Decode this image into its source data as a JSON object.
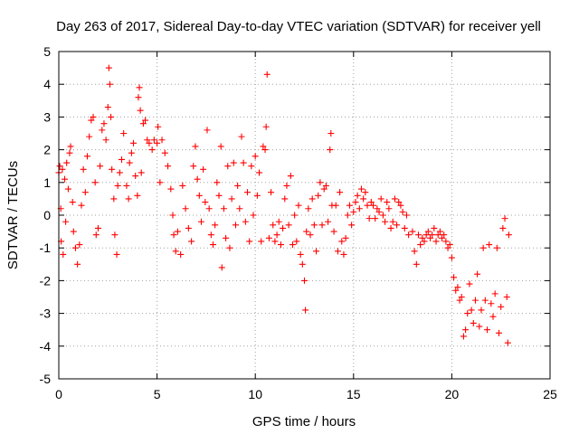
{
  "chart_data": {
    "type": "scatter",
    "title": "Day 263 of 2017, Sidereal Day-to-day VTEC variation (SDTVAR) for receiver yell",
    "xlabel": "GPS time / hours",
    "ylabel": "SDTVAR / TECUs",
    "xlim": [
      0,
      25
    ],
    "ylim": [
      -5,
      5
    ],
    "xticks": [
      0,
      5,
      10,
      15,
      20,
      25
    ],
    "yticks": [
      -5,
      -4,
      -3,
      -2,
      -1,
      0,
      1,
      2,
      3,
      4,
      5
    ],
    "grid": true,
    "marker": "+",
    "color": "#ff0000",
    "series": [
      {
        "name": "SDTVAR",
        "points": [
          [
            0.0,
            1.3
          ],
          [
            0.05,
            1.5
          ],
          [
            0.1,
            0.2
          ],
          [
            0.12,
            -0.8
          ],
          [
            0.18,
            1.4
          ],
          [
            0.22,
            -1.2
          ],
          [
            0.3,
            1.1
          ],
          [
            0.35,
            -0.2
          ],
          [
            0.4,
            1.6
          ],
          [
            0.48,
            0.8
          ],
          [
            0.55,
            1.9
          ],
          [
            0.6,
            2.1
          ],
          [
            0.7,
            0.4
          ],
          [
            0.75,
            -0.5
          ],
          [
            0.85,
            -1.0
          ],
          [
            0.95,
            -1.5
          ],
          [
            1.05,
            -0.9
          ],
          [
            1.15,
            0.3
          ],
          [
            1.25,
            1.4
          ],
          [
            1.35,
            0.7
          ],
          [
            1.45,
            1.8
          ],
          [
            1.55,
            2.4
          ],
          [
            1.65,
            2.9
          ],
          [
            1.75,
            3.0
          ],
          [
            1.85,
            1.0
          ],
          [
            1.9,
            -0.6
          ],
          [
            2.0,
            -0.4
          ],
          [
            2.1,
            1.5
          ],
          [
            2.2,
            2.6
          ],
          [
            2.3,
            2.8
          ],
          [
            2.4,
            2.3
          ],
          [
            2.5,
            3.3
          ],
          [
            2.55,
            4.5
          ],
          [
            2.6,
            4.0
          ],
          [
            2.65,
            3.0
          ],
          [
            2.7,
            1.4
          ],
          [
            2.8,
            0.5
          ],
          [
            2.85,
            -0.6
          ],
          [
            2.95,
            -1.2
          ],
          [
            3.0,
            0.9
          ],
          [
            3.1,
            1.3
          ],
          [
            3.2,
            1.7
          ],
          [
            3.3,
            2.5
          ],
          [
            3.45,
            0.9
          ],
          [
            3.55,
            0.5
          ],
          [
            3.6,
            1.6
          ],
          [
            3.7,
            1.9
          ],
          [
            3.8,
            2.2
          ],
          [
            3.9,
            1.2
          ],
          [
            4.0,
            0.6
          ],
          [
            4.05,
            3.6
          ],
          [
            4.1,
            3.9
          ],
          [
            4.15,
            3.2
          ],
          [
            4.2,
            1.3
          ],
          [
            4.3,
            2.8
          ],
          [
            4.4,
            2.9
          ],
          [
            4.5,
            2.3
          ],
          [
            4.6,
            2.2
          ],
          [
            4.75,
            2.0
          ],
          [
            4.85,
            2.3
          ],
          [
            5.0,
            2.2
          ],
          [
            5.05,
            2.7
          ],
          [
            5.15,
            1.0
          ],
          [
            5.25,
            2.3
          ],
          [
            5.4,
            1.9
          ],
          [
            5.55,
            1.5
          ],
          [
            5.7,
            0.8
          ],
          [
            5.8,
            0.0
          ],
          [
            5.85,
            -0.6
          ],
          [
            5.95,
            -1.1
          ],
          [
            6.05,
            -0.5
          ],
          [
            6.2,
            -1.2
          ],
          [
            6.3,
            0.9
          ],
          [
            6.45,
            0.2
          ],
          [
            6.6,
            -0.4
          ],
          [
            6.75,
            -0.8
          ],
          [
            6.85,
            1.5
          ],
          [
            6.95,
            2.1
          ],
          [
            7.05,
            1.1
          ],
          [
            7.15,
            0.6
          ],
          [
            7.25,
            -0.2
          ],
          [
            7.35,
            1.4
          ],
          [
            7.45,
            0.4
          ],
          [
            7.55,
            2.6
          ],
          [
            7.65,
            0.2
          ],
          [
            7.75,
            -0.6
          ],
          [
            7.85,
            -0.9
          ],
          [
            7.95,
            -0.3
          ],
          [
            8.05,
            1.0
          ],
          [
            8.15,
            0.6
          ],
          [
            8.25,
            2.1
          ],
          [
            8.3,
            -1.6
          ],
          [
            8.4,
            0.2
          ],
          [
            8.5,
            -0.7
          ],
          [
            8.6,
            1.5
          ],
          [
            8.7,
            -1.0
          ],
          [
            8.8,
            0.5
          ],
          [
            8.9,
            1.6
          ],
          [
            9.0,
            -0.3
          ],
          [
            9.1,
            0.9
          ],
          [
            9.2,
            0.2
          ],
          [
            9.3,
            2.4
          ],
          [
            9.4,
            1.6
          ],
          [
            9.5,
            -0.2
          ],
          [
            9.6,
            0.7
          ],
          [
            9.7,
            -0.8
          ],
          [
            9.8,
            1.5
          ],
          [
            9.9,
            0.0
          ],
          [
            10.0,
            1.8
          ],
          [
            10.1,
            0.6
          ],
          [
            10.2,
            1.3
          ],
          [
            10.3,
            -0.8
          ],
          [
            10.4,
            2.1
          ],
          [
            10.5,
            2.0
          ],
          [
            10.55,
            2.7
          ],
          [
            10.6,
            4.3
          ],
          [
            10.7,
            -0.7
          ],
          [
            10.8,
            0.7
          ],
          [
            10.9,
            -0.3
          ],
          [
            11.0,
            -0.8
          ],
          [
            11.1,
            -0.6
          ],
          [
            11.2,
            -0.2
          ],
          [
            11.3,
            -0.9
          ],
          [
            11.4,
            -0.4
          ],
          [
            11.5,
            0.5
          ],
          [
            11.6,
            0.9
          ],
          [
            11.7,
            -0.3
          ],
          [
            11.8,
            1.2
          ],
          [
            11.9,
            -0.9
          ],
          [
            12.0,
            0.0
          ],
          [
            12.1,
            -0.8
          ],
          [
            12.2,
            0.3
          ],
          [
            12.3,
            -1.2
          ],
          [
            12.4,
            -1.5
          ],
          [
            12.5,
            -2.0
          ],
          [
            12.55,
            -2.9
          ],
          [
            12.6,
            -0.5
          ],
          [
            12.7,
            0.2
          ],
          [
            12.8,
            -0.6
          ],
          [
            12.9,
            0.5
          ],
          [
            13.0,
            -0.3
          ],
          [
            13.1,
            -1.1
          ],
          [
            13.2,
            0.6
          ],
          [
            13.3,
            1.0
          ],
          [
            13.4,
            -0.3
          ],
          [
            13.5,
            0.8
          ],
          [
            13.6,
            0.9
          ],
          [
            13.7,
            -0.2
          ],
          [
            13.8,
            2.0
          ],
          [
            13.85,
            2.5
          ],
          [
            13.9,
            0.3
          ],
          [
            14.0,
            -0.5
          ],
          [
            14.1,
            0.3
          ],
          [
            14.2,
            -1.1
          ],
          [
            14.3,
            0.7
          ],
          [
            14.4,
            -0.8
          ],
          [
            14.5,
            -1.2
          ],
          [
            14.6,
            -0.7
          ],
          [
            14.7,
            0.0
          ],
          [
            14.8,
            0.3
          ],
          [
            14.9,
            -0.3
          ],
          [
            15.0,
            0.1
          ],
          [
            15.1,
            0.4
          ],
          [
            15.2,
            0.6
          ],
          [
            15.3,
            0.2
          ],
          [
            15.4,
            0.8
          ],
          [
            15.5,
            0.5
          ],
          [
            15.6,
            0.7
          ],
          [
            15.7,
            0.3
          ],
          [
            15.8,
            -0.1
          ],
          [
            15.9,
            0.4
          ],
          [
            16.0,
            0.3
          ],
          [
            16.1,
            -0.1
          ],
          [
            16.2,
            0.2
          ],
          [
            16.3,
            0.1
          ],
          [
            16.4,
            0.5
          ],
          [
            16.5,
            0.0
          ],
          [
            16.6,
            -0.2
          ],
          [
            16.7,
            0.4
          ],
          [
            16.8,
            0.2
          ],
          [
            16.9,
            -0.4
          ],
          [
            17.0,
            -0.2
          ],
          [
            17.1,
            0.5
          ],
          [
            17.2,
            -0.3
          ],
          [
            17.3,
            0.4
          ],
          [
            17.4,
            0.3
          ],
          [
            17.5,
            0.1
          ],
          [
            17.6,
            -0.4
          ],
          [
            17.7,
            0.0
          ],
          [
            17.8,
            -0.6
          ],
          [
            18.0,
            -0.5
          ],
          [
            18.1,
            -1.1
          ],
          [
            18.2,
            -1.5
          ],
          [
            18.3,
            -0.6
          ],
          [
            18.4,
            -0.9
          ],
          [
            18.5,
            -0.7
          ],
          [
            18.6,
            -0.8
          ],
          [
            18.7,
            -0.6
          ],
          [
            18.8,
            -0.5
          ],
          [
            18.9,
            -0.7
          ],
          [
            19.0,
            -0.6
          ],
          [
            19.1,
            -0.4
          ],
          [
            19.2,
            -0.8
          ],
          [
            19.3,
            -0.6
          ],
          [
            19.4,
            -0.5
          ],
          [
            19.5,
            -0.7
          ],
          [
            19.6,
            -0.6
          ],
          [
            19.7,
            -0.8
          ],
          [
            19.8,
            -1.0
          ],
          [
            19.9,
            -0.9
          ],
          [
            20.0,
            -1.3
          ],
          [
            20.1,
            -1.9
          ],
          [
            20.2,
            -2.3
          ],
          [
            20.3,
            -2.2
          ],
          [
            20.4,
            -2.6
          ],
          [
            20.5,
            -2.5
          ],
          [
            20.6,
            -3.7
          ],
          [
            20.7,
            -3.5
          ],
          [
            20.8,
            -3.0
          ],
          [
            20.9,
            -2.1
          ],
          [
            21.0,
            -2.9
          ],
          [
            21.1,
            -3.3
          ],
          [
            21.2,
            -2.6
          ],
          [
            21.3,
            -1.8
          ],
          [
            21.4,
            -3.4
          ],
          [
            21.5,
            -2.9
          ],
          [
            21.6,
            -1.0
          ],
          [
            21.7,
            -2.6
          ],
          [
            21.8,
            -3.5
          ],
          [
            21.9,
            -0.9
          ],
          [
            22.0,
            -2.7
          ],
          [
            22.1,
            -3.1
          ],
          [
            22.2,
            -2.4
          ],
          [
            22.3,
            -1.0
          ],
          [
            22.4,
            -3.6
          ],
          [
            22.5,
            -2.8
          ],
          [
            22.6,
            -0.4
          ],
          [
            22.7,
            -0.1
          ],
          [
            22.8,
            -2.5
          ],
          [
            22.85,
            -3.9
          ],
          [
            22.9,
            -0.6
          ]
        ]
      }
    ]
  }
}
